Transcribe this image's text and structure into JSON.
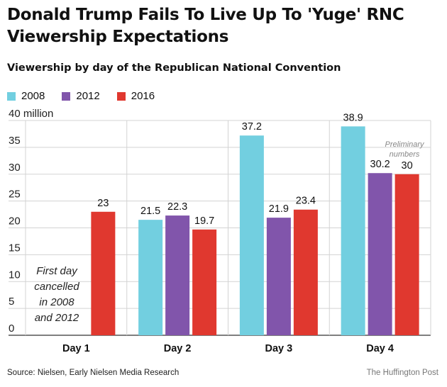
{
  "title": "Donald Trump Fails To Live Up To 'Yuge' RNC Viewership Expectations",
  "subtitle": "Viewership by day of the Republican National Convention",
  "source": "Source: Nielsen, Early Nielsen Media Research",
  "credit": "The Huffington Post",
  "colors": {
    "2008": "#72cfe0",
    "2012": "#8155ab",
    "2016": "#e0382f"
  },
  "chart_data": {
    "type": "bar",
    "categories": [
      "Day 1",
      "Day 2",
      "Day 3",
      "Day 4"
    ],
    "series": [
      {
        "name": "2008",
        "values": [
          null,
          21.5,
          37.2,
          38.9
        ]
      },
      {
        "name": "2012",
        "values": [
          null,
          22.3,
          21.9,
          30.2
        ]
      },
      {
        "name": "2016",
        "values": [
          23,
          19.7,
          23.4,
          30
        ]
      }
    ],
    "ytick_labels": [
      "0",
      "5",
      "10",
      "15",
      "20",
      "25",
      "30",
      "35",
      "40 million"
    ],
    "ylim": [
      0,
      40
    ],
    "grid": true,
    "legend": "top-left",
    "annotations": {
      "day1_note": [
        "First day",
        "cancelled",
        "in 2008",
        "and 2012"
      ],
      "day4_note": [
        "Preliminary",
        "numbers"
      ]
    }
  }
}
